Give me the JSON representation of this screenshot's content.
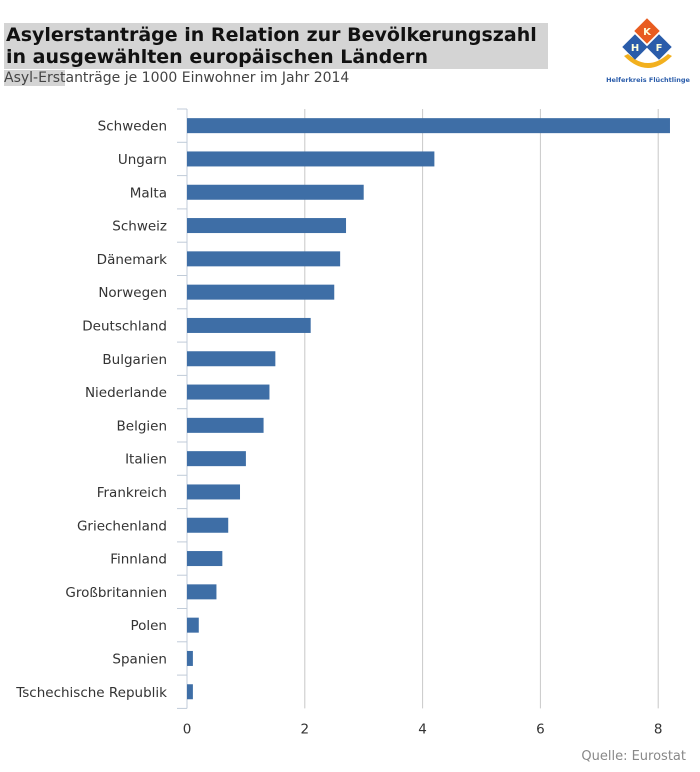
{
  "title": "Asylerstanträge in Relation zur Bevölkerungszahl in ausgewählten europäischen Ländern",
  "subtitle_part1": "Asyl-Erst",
  "subtitle_part2": "anträge je 1000 Einwohner im Jahr 2014",
  "logo": {
    "letters": [
      "K",
      "H",
      "F"
    ],
    "text": "Helferkreis Flüchtlinge"
  },
  "source": "Quelle: Eurostat",
  "colors": {
    "bar": "#3e6ea6",
    "grid": "#c8c8c8"
  },
  "chart_data": {
    "type": "bar",
    "orientation": "horizontal",
    "title": "Asylerstanträge in Relation zur Bevölkerungszahl in ausgewählten europäischen Ländern",
    "subtitle": "Asyl-Erstanträge je 1000 Einwohner im Jahr 2014",
    "categories": [
      "Schweden",
      "Ungarn",
      "Malta",
      "Schweiz",
      "Dänemark",
      "Norwegen",
      "Deutschland",
      "Bulgarien",
      "Niederlande",
      "Belgien",
      "Italien",
      "Frankreich",
      "Griechenland",
      "Finnland",
      "Großbritannien",
      "Polen",
      "Spanien",
      "Tschechische Republik"
    ],
    "values": [
      8.2,
      4.2,
      3.0,
      2.7,
      2.6,
      2.5,
      2.1,
      1.5,
      1.4,
      1.3,
      1.0,
      0.9,
      0.7,
      0.6,
      0.5,
      0.2,
      0.1,
      0.1
    ],
    "xlim": [
      0,
      8.3
    ],
    "xticks": [
      "0",
      "2",
      "4",
      "6",
      "8"
    ],
    "grid": true
  }
}
